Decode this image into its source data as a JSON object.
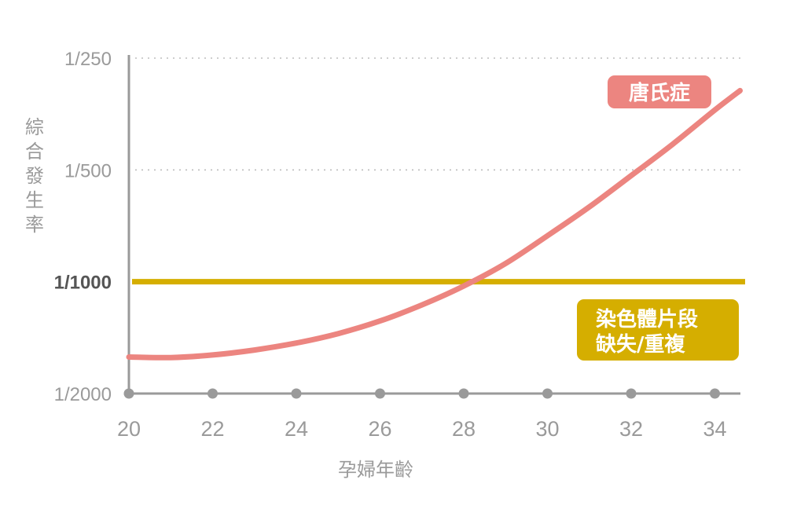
{
  "chart_data": {
    "type": "line",
    "title": "",
    "xlabel": "孕婦年齡",
    "ylabel": "綜合發生率",
    "x_ticks": [
      "20",
      "22",
      "24",
      "26",
      "28",
      "30",
      "32",
      "34"
    ],
    "xlim": [
      20,
      34.7
    ],
    "y_scale": "log",
    "y_ticks": [
      "1/250",
      "1/500",
      "1/1000",
      "1/2000"
    ],
    "y_tick_values": [
      0.004,
      0.002,
      0.001,
      0.0005
    ],
    "ylim": [
      0.0005,
      0.004
    ],
    "grid": "dotted horizontal at 1/250 and 1/500",
    "series": [
      {
        "name": "唐氏症",
        "color": "#ec8580",
        "x": [
          20,
          21,
          22,
          23,
          24,
          25,
          26,
          27,
          28,
          29,
          30,
          31,
          32,
          33,
          34,
          34.6
        ],
        "y": [
          0.000627,
          0.000625,
          0.000635,
          0.000655,
          0.000684,
          0.000725,
          0.000784,
          0.000866,
          0.000974,
          0.00112,
          0.00133,
          0.00159,
          0.00193,
          0.00235,
          0.0029,
          0.00327
        ]
      },
      {
        "name": "染色體片段缺失/重複",
        "color": "#d5ae00",
        "x": [
          20,
          34.7
        ],
        "y": [
          0.001,
          0.001
        ]
      }
    ],
    "annotations": {
      "down_syndrome": "唐氏症",
      "microdeletion_line1": "染色體片段",
      "microdeletion_line2": "缺失/重複"
    }
  }
}
